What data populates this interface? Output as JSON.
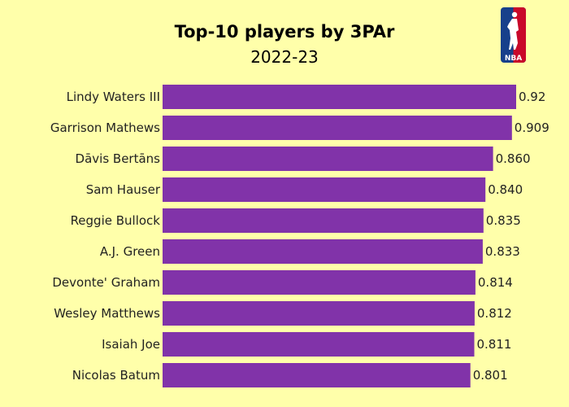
{
  "chart_data": {
    "type": "bar",
    "orientation": "horizontal",
    "title": "Top-10 players by 3PAr",
    "subtitle": "2022-23",
    "categories": [
      "Lindy Waters III",
      "Garrison Mathews",
      "Dāvis Bertāns",
      "Sam Hauser",
      "Reggie Bullock",
      "A.J. Green",
      "Devonte' Graham",
      "Wesley Matthews",
      "Isaiah Joe",
      "Nicolas Batum"
    ],
    "values": [
      0.92,
      0.909,
      0.86,
      0.84,
      0.835,
      0.833,
      0.814,
      0.812,
      0.811,
      0.801
    ],
    "value_labels": [
      "0.92",
      "0.909",
      "0.860",
      "0.840",
      "0.835",
      "0.833",
      "0.814",
      "0.812",
      "0.811",
      "0.801"
    ],
    "xlim": [
      0,
      0.92
    ],
    "bar_color": "#8133a9",
    "background_color": "#ffffaa",
    "grid": false,
    "legend": "none"
  },
  "logo": {
    "icon": "nba-logo-icon",
    "text": "NBA",
    "colors": {
      "blue": "#17408b",
      "red": "#c9082a"
    }
  }
}
